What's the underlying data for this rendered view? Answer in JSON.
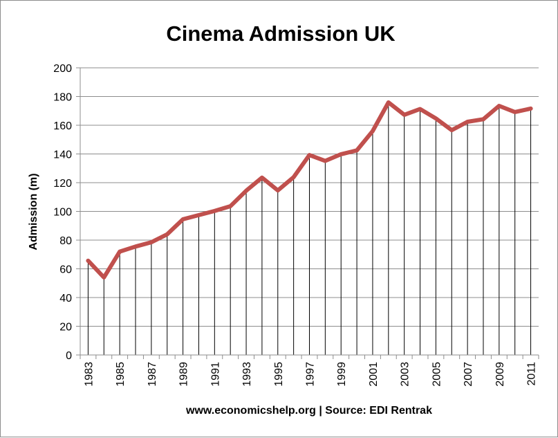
{
  "chart_data": {
    "type": "line",
    "title": "Cinema Admission UK",
    "ylabel": "Admission (m)",
    "xlabel": "www.economicshelp.org | Source: EDI Rentrak",
    "ylim": [
      0,
      200
    ],
    "yticks": [
      0,
      20,
      40,
      60,
      80,
      100,
      120,
      140,
      160,
      180,
      200
    ],
    "xtick_labels": [
      "1983",
      "1985",
      "1987",
      "1989",
      "1991",
      "1993",
      "1995",
      "1997",
      "1999",
      "2001",
      "2003",
      "2005",
      "2007",
      "2009",
      "2011"
    ],
    "grid": "horizontal",
    "drop_lines": true,
    "series": [
      {
        "color": "#c0504d",
        "x": [
          1983,
          1984,
          1985,
          1986,
          1987,
          1988,
          1989,
          1990,
          1991,
          1992,
          1993,
          1994,
          1995,
          1996,
          1997,
          1998,
          1999,
          2000,
          2001,
          2002,
          2003,
          2004,
          2005,
          2006,
          2007,
          2008,
          2009,
          2010,
          2011
        ],
        "values": [
          65.7,
          54,
          72,
          75.5,
          78.5,
          84,
          94.5,
          97.4,
          100.3,
          103.6,
          114.4,
          123.5,
          114.6,
          123.8,
          139.3,
          135.2,
          139.8,
          142.5,
          155.9,
          175.9,
          167.3,
          171.3,
          164.7,
          156.6,
          162.4,
          164.2,
          173.5,
          169.2,
          171.6
        ]
      }
    ]
  }
}
